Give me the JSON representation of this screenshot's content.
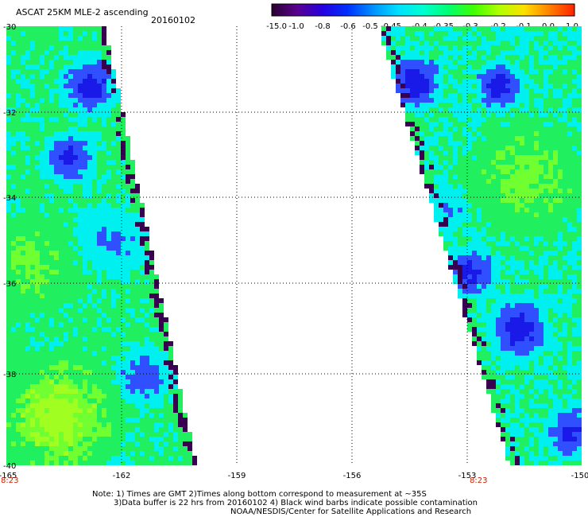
{
  "header": {
    "title": "ASCAT 25KM MLE-2 ascending",
    "date": "20160102"
  },
  "colorbar": {
    "labels": [
      "-15.0",
      "-1.0",
      "-0.8",
      "-0.6",
      "-0.5",
      "-0.45",
      "-0.4",
      "-0.35",
      "-0.3",
      "-0.2",
      "-0.1",
      "0.0",
      "1.0"
    ],
    "colors": [
      "#2a0030",
      "#5a0090",
      "#2400e0",
      "#0030ff",
      "#0090ff",
      "#00e0ff",
      "#00ffd0",
      "#00ff70",
      "#40ff00",
      "#b0ff00",
      "#ffe000",
      "#ff8000",
      "#ff2000"
    ]
  },
  "map": {
    "latitude_labels": [
      "-30",
      "-32",
      "-34",
      "-36",
      "-38",
      "-40"
    ],
    "longitude_labels": [
      "-165",
      "-162",
      "-159",
      "-156",
      "-153",
      "-150"
    ],
    "pass_times": [
      "8:23",
      "8:23"
    ],
    "data_colors": {
      "contaminated": "#3a0050",
      "dark_blue": "#1a1ae8",
      "blue": "#3050ff",
      "cyan": "#00f0f0",
      "green": "#20f060",
      "light_green": "#70ff30",
      "yellow_green": "#a0ff20"
    }
  },
  "notes": [
    "Note: 1) Times are GMT 2)Times along bottom correspond to measurement at ~35S",
    "3)Data buffer is 22 hrs from 20160102 4) Black wind barbs indicate possible contamination",
    "NOAA/NESDIS/Center for Satellite Applications and Research"
  ]
}
